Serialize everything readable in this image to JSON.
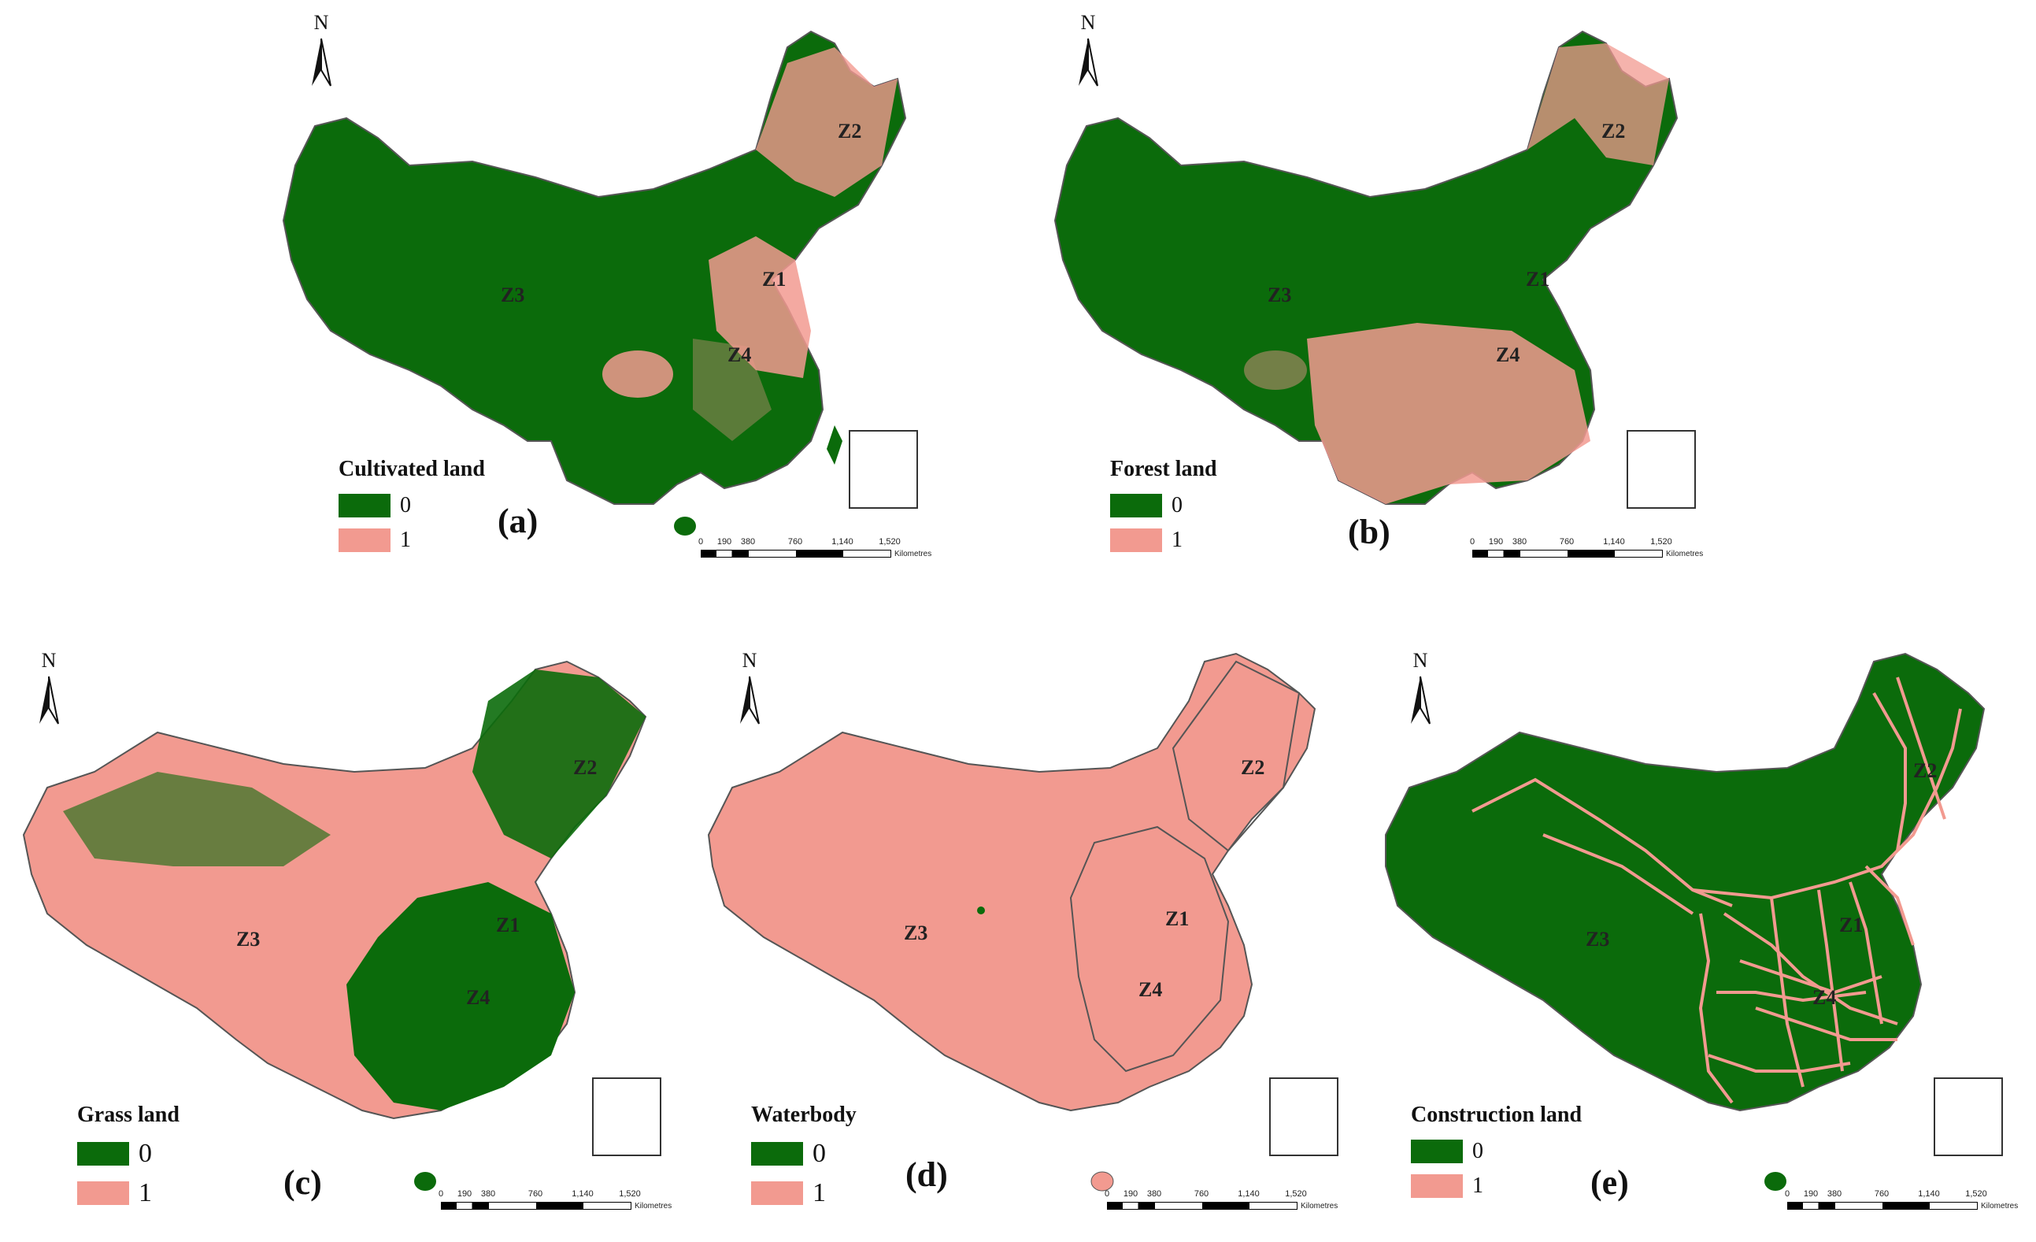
{
  "north_label": "N",
  "zones": [
    "Z1",
    "Z2",
    "Z3",
    "Z4"
  ],
  "legend_values": [
    "0",
    "1"
  ],
  "colors": {
    "class0": "#0b6b0b",
    "class1": "#f29a90",
    "border": "#555555"
  },
  "scale": {
    "ticks": [
      "0",
      "190",
      "380",
      "760",
      "1,140",
      "1,520"
    ],
    "unit": "Kilometres"
  },
  "panels": [
    {
      "id": "a",
      "letter": "(a)",
      "legend_title": "Cultivated land"
    },
    {
      "id": "b",
      "letter": "(b)",
      "legend_title": "Forest land"
    },
    {
      "id": "c",
      "letter": "(c)",
      "legend_title": "Grass land"
    },
    {
      "id": "d",
      "letter": "(d)",
      "legend_title": "Waterbody"
    },
    {
      "id": "e",
      "letter": "(e)",
      "legend_title": "Construction land"
    }
  ]
}
